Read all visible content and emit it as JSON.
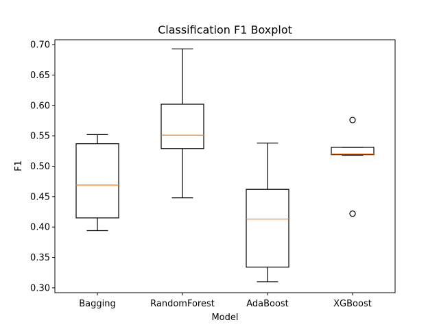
{
  "chart_data": {
    "type": "boxplot",
    "title": "Classification F1 Boxplot",
    "xlabel": "Model",
    "ylabel": "F1",
    "ylim": [
      0.292,
      0.708
    ],
    "yticks": [
      0.3,
      0.35,
      0.4,
      0.45,
      0.5,
      0.55,
      0.6,
      0.65,
      0.7
    ],
    "ytick_labels": [
      "0.30",
      "0.35",
      "0.40",
      "0.45",
      "0.50",
      "0.55",
      "0.60",
      "0.65",
      "0.70"
    ],
    "grid": false,
    "categories": [
      "Bagging",
      "RandomForest",
      "AdaBoost",
      "XGBoost"
    ],
    "boxes": [
      {
        "category": "Bagging",
        "whisker_low": 0.394,
        "q1": 0.415,
        "median": 0.469,
        "q3": 0.537,
        "whisker_high": 0.552,
        "outliers": []
      },
      {
        "category": "RandomForest",
        "whisker_low": 0.448,
        "q1": 0.529,
        "median": 0.551,
        "q3": 0.602,
        "whisker_high": 0.693,
        "outliers": []
      },
      {
        "category": "AdaBoost",
        "whisker_low": 0.31,
        "q1": 0.334,
        "median": 0.413,
        "q3": 0.462,
        "whisker_high": 0.538,
        "outliers": []
      },
      {
        "category": "XGBoost",
        "whisker_low": 0.518,
        "q1": 0.519,
        "median": 0.52,
        "q3": 0.531,
        "whisker_high": 0.531,
        "outliers": [
          0.576,
          0.422
        ]
      }
    ],
    "colors": {
      "box": "#000000",
      "median": "#ff7f0e",
      "background": "#ffffff"
    }
  }
}
